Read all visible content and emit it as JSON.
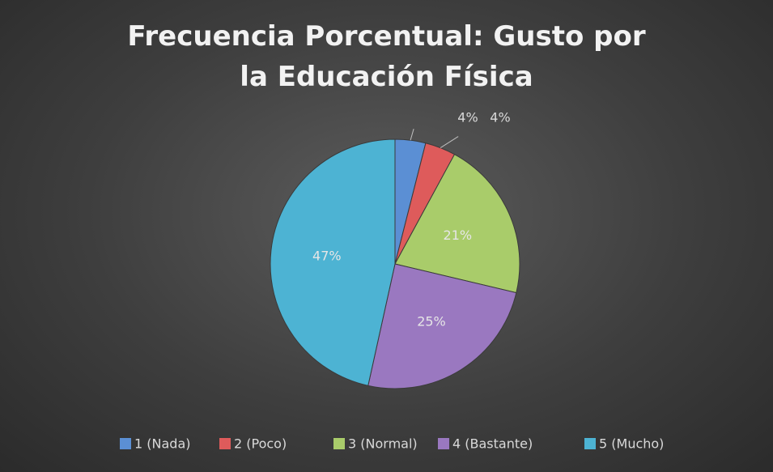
{
  "chart_data": {
    "type": "pie",
    "title": "Frecuencia Porcentual: Gusto por la Educación Física",
    "categories": [
      "1 (Nada)",
      "2 (Poco)",
      "3 (Normal)",
      "4 (Bastante)",
      "5 (Mucho)"
    ],
    "values": [
      4,
      4,
      21,
      25,
      47
    ],
    "value_labels": [
      "4%",
      "4%",
      "21%",
      "25%",
      "47%"
    ],
    "colors": [
      "#5b8fd4",
      "#de5b5b",
      "#a9cc6a",
      "#9a78c0",
      "#4db3d3"
    ],
    "legend": "bottom"
  }
}
